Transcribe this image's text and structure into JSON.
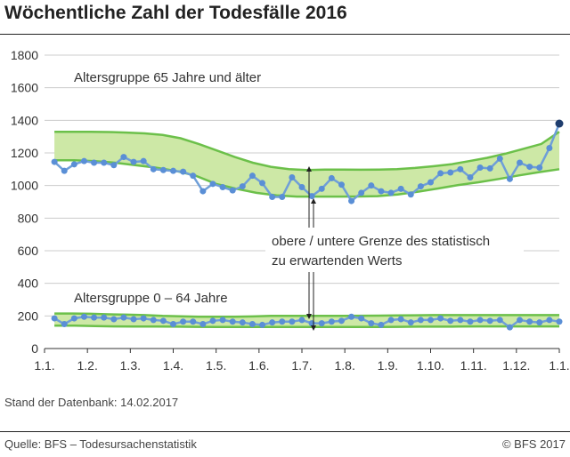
{
  "title": "Wöchentliche Zahl der Todesfälle 2016",
  "stand": "Stand der Datenbank: 14.02.2017",
  "source": "Quelle: BFS – Todesursachenstatistik",
  "copyright": "© BFS 2017",
  "colors": {
    "band_fill": "#cde8a6",
    "bound_line": "#6cc04a",
    "series_line": "#6f9fd8",
    "series_marker": "#5a8fd6",
    "highlight_marker": "#1f3d6e",
    "grid": "#cccccc",
    "axis": "#333333"
  },
  "chart_data": {
    "type": "line",
    "ylim": [
      0,
      1800
    ],
    "yticks": [
      "0",
      "200",
      "400",
      "600",
      "800",
      "1000",
      "1200",
      "1400",
      "1600",
      "1800"
    ],
    "xticks": [
      "1.1.",
      "1.2.",
      "1.3.",
      "1.4.",
      "1.5.",
      "1.6.",
      "1.7.",
      "1.8.",
      "1.9.",
      "1.10.",
      "1.11.",
      "1.12.",
      "1.1."
    ],
    "grid": "horizontal",
    "annotations": {
      "group_65": "Altersgruppe 65 Jahre und älter",
      "group_0_64": "Altersgruppe 0 – 64 Jahre",
      "bounds_line1": "obere / untere Grenze des statistisch",
      "bounds_line2": "zu erwartenden Werts"
    },
    "groups": [
      {
        "label": "Altersgruppe 65 Jahre und älter",
        "weekly_deaths": [
          1145,
          1090,
          1130,
          1150,
          1140,
          1140,
          1125,
          1175,
          1145,
          1150,
          1100,
          1095,
          1090,
          1085,
          1060,
          965,
          1010,
          990,
          970,
          995,
          1060,
          1015,
          930,
          930,
          1050,
          990,
          935,
          980,
          1045,
          1005,
          905,
          955,
          1000,
          965,
          955,
          980,
          945,
          995,
          1020,
          1075,
          1080,
          1100,
          1050,
          1110,
          1105,
          1165,
          1040,
          1140,
          1115,
          1110,
          1230,
          1380
        ],
        "upper_bound": [
          1330,
          1330,
          1330,
          1328,
          1325,
          1320,
          1310,
          1290,
          1255,
          1215,
          1175,
          1140,
          1115,
          1100,
          1095,
          1098,
          1098,
          1097,
          1098,
          1100,
          1108,
          1118,
          1130,
          1150,
          1170,
          1195,
          1225,
          1255,
          1330
        ],
        "lower_bound": [
          1155,
          1155,
          1150,
          1140,
          1125,
          1110,
          1090,
          1060,
          1010,
          980,
          955,
          940,
          932,
          932,
          932,
          933,
          935,
          945,
          962,
          982,
          1003,
          1020,
          1040,
          1062,
          1082,
          1100
        ]
      },
      {
        "label": "Altersgruppe 0 – 64 Jahre",
        "weekly_deaths": [
          185,
          150,
          185,
          195,
          190,
          190,
          180,
          190,
          180,
          185,
          175,
          170,
          150,
          165,
          165,
          150,
          170,
          175,
          165,
          160,
          150,
          145,
          160,
          165,
          165,
          175,
          155,
          155,
          165,
          170,
          195,
          185,
          155,
          145,
          175,
          180,
          160,
          175,
          175,
          185,
          170,
          175,
          165,
          175,
          170,
          175,
          130,
          175,
          165,
          160,
          175,
          165
        ],
        "upper_bound": [
          215,
          215,
          213,
          210,
          208,
          205,
          200,
          198,
          195,
          195,
          195,
          197,
          200,
          200,
          200,
          200,
          200,
          201,
          202,
          203,
          204,
          205,
          205,
          205,
          205,
          205,
          205,
          205,
          205
        ],
        "lower_bound": [
          140,
          140,
          138,
          136,
          135,
          135,
          134,
          133,
          132,
          132,
          132,
          132,
          132,
          132,
          132,
          132,
          132,
          133,
          134,
          134,
          135,
          136,
          136,
          136,
          136,
          136
        ]
      }
    ]
  }
}
